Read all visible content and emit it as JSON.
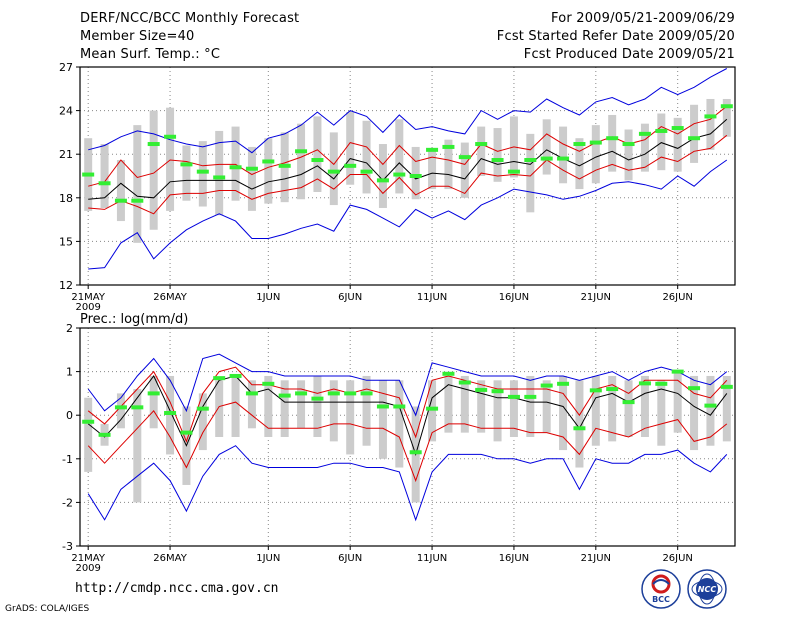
{
  "header": {
    "title": "DERF/NCC/BCC Monthly Forecast",
    "member_size": "Member Size=40",
    "variable1": "Mean Surf. Temp.: °C",
    "period": "For 2009/05/21-2009/06/29",
    "started": "Fcst Started Refer Date 2009/05/20",
    "produced": "Fcst Produced Date 2009/05/21"
  },
  "footer": {
    "url": "http://cmdp.ncc.cma.gov.cn",
    "grads": "GrADS: COLA/IGES"
  },
  "logos": {
    "bcc": "BCC",
    "ncc": "NCC"
  },
  "colors": {
    "spread": "#cccccc",
    "mean": "#000000",
    "band": "#dd0000",
    "envelope": "#0000dd",
    "marker": "#33ee33",
    "grid": "#888888"
  },
  "chart_data": [
    {
      "type": "line",
      "title": "Mean Surf. Temp.: °C",
      "xlabel": "",
      "ylabel": "",
      "x_tick_labels": [
        "21MAY",
        "26MAY",
        "1JUN",
        "6JUN",
        "11JUN",
        "16JUN",
        "21JUN",
        "26JUN"
      ],
      "x_tick_days": [
        1,
        6,
        12,
        17,
        22,
        27,
        32,
        37
      ],
      "x_year_label": "2009",
      "ylim": [
        12,
        27
      ],
      "y_ticks": [
        12,
        15,
        18,
        21,
        24,
        27
      ],
      "grid": true,
      "days": 40,
      "series": [
        {
          "name": "min",
          "values": [
            13.1,
            13.2,
            14.9,
            15.6,
            13.8,
            14.9,
            15.8,
            16.4,
            16.9,
            16.4,
            15.2,
            15.2,
            15.5,
            15.9,
            16.2,
            15.7,
            17.5,
            17.2,
            16.6,
            16.0,
            17.2,
            16.6,
            17.1,
            16.5,
            17.5,
            18.0,
            18.6,
            18.4,
            18.2,
            17.9,
            18.1,
            18.5,
            19.0,
            19.1,
            18.9,
            18.6,
            19.5,
            18.8,
            19.8,
            20.6
          ]
        },
        {
          "name": "p25",
          "values": [
            17.3,
            17.2,
            17.8,
            17.4,
            16.9,
            18.2,
            18.3,
            18.3,
            18.5,
            18.5,
            17.9,
            18.3,
            18.5,
            18.7,
            19.3,
            18.6,
            19.6,
            19.6,
            18.3,
            19.4,
            18.2,
            18.8,
            18.8,
            18.3,
            19.7,
            19.5,
            19.6,
            19.5,
            20.6,
            19.9,
            19.3,
            19.9,
            20.3,
            19.9,
            20.1,
            20.8,
            20.5,
            21.2,
            21.4,
            22.3
          ]
        },
        {
          "name": "mean",
          "values": [
            17.9,
            18.0,
            19.0,
            18.1,
            18.0,
            19.1,
            19.2,
            19.2,
            19.2,
            19.2,
            18.6,
            19.1,
            19.3,
            19.6,
            20.2,
            19.3,
            20.7,
            20.4,
            19.2,
            20.4,
            19.3,
            19.7,
            19.6,
            19.3,
            20.7,
            20.3,
            20.5,
            20.3,
            21.3,
            20.7,
            20.2,
            20.8,
            21.2,
            20.6,
            21.0,
            21.8,
            21.4,
            22.1,
            22.4,
            23.4
          ]
        },
        {
          "name": "p75",
          "values": [
            18.8,
            19.1,
            20.6,
            19.4,
            19.7,
            20.6,
            20.5,
            20.2,
            20.3,
            20.3,
            19.6,
            20.1,
            20.4,
            20.8,
            21.3,
            20.3,
            21.8,
            21.5,
            20.3,
            21.6,
            20.5,
            20.8,
            20.6,
            20.3,
            21.7,
            21.2,
            21.5,
            21.3,
            22.4,
            21.7,
            21.2,
            21.8,
            22.2,
            21.7,
            22.0,
            22.9,
            22.4,
            23.1,
            23.4,
            24.3
          ]
        },
        {
          "name": "max",
          "values": [
            21.3,
            21.6,
            22.2,
            22.6,
            22.4,
            22.0,
            21.7,
            21.5,
            21.8,
            21.9,
            21.1,
            22.1,
            22.4,
            23.0,
            23.9,
            23.0,
            24.0,
            23.6,
            22.5,
            23.7,
            22.7,
            22.9,
            22.6,
            22.4,
            24.0,
            23.4,
            24.0,
            23.9,
            24.8,
            24.2,
            23.7,
            24.6,
            24.9,
            24.4,
            24.8,
            25.6,
            25.1,
            25.6,
            26.3,
            26.9
          ]
        },
        {
          "name": "obs_mean",
          "values": [
            19.6,
            19.0,
            17.8,
            17.8,
            21.7,
            22.2,
            20.3,
            19.8,
            19.4,
            20.1,
            20.0,
            20.5,
            20.2,
            21.2,
            20.6,
            19.8,
            20.2,
            19.8,
            19.2,
            19.6,
            19.5,
            21.3,
            21.5,
            20.8,
            21.7,
            20.6,
            19.8,
            20.6,
            20.7,
            20.7,
            21.7,
            21.8,
            22.1,
            21.7,
            22.4,
            22.6,
            22.8,
            22.1,
            23.6,
            24.3
          ]
        },
        {
          "name": "bar_low",
          "values": [
            17.1,
            17.3,
            16.4,
            14.9,
            15.8,
            17.1,
            17.8,
            17.4,
            16.8,
            17.8,
            17.1,
            17.6,
            17.7,
            17.9,
            18.4,
            17.5,
            18.9,
            18.3,
            17.3,
            18.3,
            17.9,
            18.6,
            18.6,
            18.0,
            19.5,
            19.1,
            19.4,
            17.0,
            19.6,
            19.0,
            18.6,
            19.0,
            19.8,
            19.2,
            19.8,
            19.9,
            19.8,
            20.4,
            21.3,
            22.2
          ]
        },
        {
          "name": "bar_high",
          "values": [
            22.1,
            21.7,
            20.6,
            23.0,
            24.0,
            24.2,
            21.6,
            21.9,
            22.6,
            22.9,
            21.5,
            22.1,
            22.5,
            23.1,
            23.6,
            22.5,
            23.9,
            23.3,
            21.7,
            23.4,
            21.5,
            21.4,
            22.0,
            21.8,
            22.9,
            22.8,
            23.6,
            22.4,
            23.4,
            22.9,
            22.1,
            23.0,
            23.7,
            22.7,
            23.1,
            23.8,
            23.5,
            24.4,
            24.8,
            24.8
          ]
        }
      ]
    },
    {
      "type": "line",
      "title": "Prec.: log(mm/d)",
      "xlabel": "",
      "ylabel": "",
      "x_tick_labels": [
        "21MAY",
        "26MAY",
        "1JUN",
        "6JUN",
        "11JUN",
        "16JUN",
        "21JUN",
        "26JUN"
      ],
      "x_tick_days": [
        1,
        6,
        12,
        17,
        22,
        27,
        32,
        37
      ],
      "x_year_label": "2009",
      "ylim": [
        -3,
        2
      ],
      "y_ticks": [
        -3,
        -2,
        -1,
        0,
        1,
        2
      ],
      "grid": true,
      "days": 40,
      "series": [
        {
          "name": "min",
          "values": [
            -1.8,
            -2.4,
            -1.7,
            -1.4,
            -1.1,
            -1.5,
            -2.2,
            -1.4,
            -0.9,
            -0.7,
            -1.1,
            -1.2,
            -1.2,
            -1.2,
            -1.2,
            -1.1,
            -1.1,
            -1.2,
            -1.2,
            -1.3,
            -2.4,
            -1.3,
            -0.9,
            -0.9,
            -0.9,
            -1.0,
            -1.0,
            -1.1,
            -1.0,
            -1.0,
            -1.7,
            -1.0,
            -1.1,
            -1.1,
            -0.9,
            -0.9,
            -0.8,
            -1.1,
            -1.3,
            -0.9
          ]
        },
        {
          "name": "p25",
          "values": [
            -0.7,
            -1.1,
            -0.7,
            -0.3,
            0.1,
            -0.5,
            -1.2,
            -0.4,
            0.2,
            0.3,
            0.0,
            -0.3,
            -0.3,
            -0.3,
            -0.3,
            -0.2,
            -0.2,
            -0.3,
            -0.3,
            -0.5,
            -1.5,
            -0.4,
            -0.2,
            -0.2,
            -0.3,
            -0.3,
            -0.3,
            -0.4,
            -0.4,
            -0.5,
            -0.9,
            -0.3,
            -0.4,
            -0.5,
            -0.3,
            -0.2,
            -0.1,
            -0.6,
            -0.5,
            -0.2
          ]
        },
        {
          "name": "mean",
          "values": [
            -0.2,
            -0.5,
            -0.1,
            0.4,
            0.9,
            0.1,
            -0.7,
            0.2,
            0.8,
            0.9,
            0.5,
            0.6,
            0.3,
            0.3,
            0.3,
            0.3,
            0.3,
            0.3,
            0.3,
            0.2,
            -0.9,
            0.4,
            0.7,
            0.6,
            0.5,
            0.4,
            0.4,
            0.3,
            0.3,
            0.2,
            -0.3,
            0.4,
            0.5,
            0.3,
            0.5,
            0.6,
            0.5,
            0.2,
            0.0,
            0.5
          ]
        },
        {
          "name": "p75",
          "values": [
            0.1,
            -0.2,
            0.2,
            0.6,
            1.0,
            0.3,
            -0.6,
            0.5,
            1.0,
            1.1,
            0.7,
            0.7,
            0.6,
            0.6,
            0.5,
            0.6,
            0.5,
            0.6,
            0.5,
            0.4,
            -0.5,
            0.8,
            0.9,
            0.8,
            0.7,
            0.6,
            0.6,
            0.6,
            0.6,
            0.5,
            0.0,
            0.6,
            0.7,
            0.5,
            0.8,
            0.8,
            0.8,
            0.5,
            0.4,
            0.8
          ]
        },
        {
          "name": "max",
          "values": [
            0.6,
            0.1,
            0.4,
            0.9,
            1.3,
            0.8,
            0.1,
            1.3,
            1.4,
            1.2,
            1.0,
            1.0,
            0.9,
            0.9,
            0.9,
            0.9,
            0.9,
            0.8,
            0.8,
            0.8,
            0.0,
            1.2,
            1.1,
            1.0,
            0.9,
            0.9,
            0.9,
            0.8,
            0.9,
            0.9,
            0.8,
            0.9,
            1.0,
            0.8,
            1.0,
            1.1,
            1.0,
            0.8,
            0.7,
            1.0
          ]
        },
        {
          "name": "obs_mean",
          "values": [
            -0.15,
            -0.45,
            0.18,
            0.18,
            0.5,
            0.05,
            -0.4,
            0.15,
            0.85,
            0.9,
            0.5,
            0.72,
            0.45,
            0.5,
            0.38,
            0.5,
            0.5,
            0.5,
            0.2,
            0.2,
            -0.85,
            0.15,
            0.95,
            0.75,
            0.58,
            0.55,
            0.42,
            0.42,
            0.68,
            0.72,
            -0.3,
            0.57,
            0.6,
            0.3,
            0.73,
            0.72,
            1.0,
            0.62,
            0.22,
            0.65
          ]
        },
        {
          "name": "bar_low",
          "values": [
            -1.3,
            -0.7,
            -0.3,
            -2.0,
            -0.3,
            -0.9,
            -1.6,
            -0.8,
            -0.5,
            -0.5,
            -0.3,
            -0.5,
            -0.5,
            -0.3,
            -0.5,
            -0.6,
            -0.9,
            -0.7,
            -1.0,
            -1.2,
            -2.0,
            -0.6,
            -0.4,
            -0.4,
            -0.4,
            -0.6,
            -0.5,
            -0.5,
            -0.4,
            -0.8,
            -1.2,
            -0.7,
            -0.6,
            -0.5,
            -0.5,
            -0.7,
            -0.4,
            -0.8,
            -0.7,
            -0.6
          ]
        },
        {
          "name": "bar_high",
          "values": [
            0.4,
            -0.2,
            0.5,
            0.6,
            0.9,
            0.9,
            0.2,
            0.5,
            0.8,
            0.9,
            0.8,
            0.9,
            0.8,
            0.8,
            0.9,
            0.8,
            0.8,
            0.9,
            0.8,
            0.8,
            0.2,
            0.8,
            0.9,
            0.9,
            0.8,
            0.8,
            0.8,
            0.9,
            0.8,
            0.9,
            0.8,
            0.9,
            0.9,
            0.8,
            0.9,
            0.8,
            1.0,
            0.9,
            0.9,
            0.9
          ]
        }
      ]
    }
  ]
}
